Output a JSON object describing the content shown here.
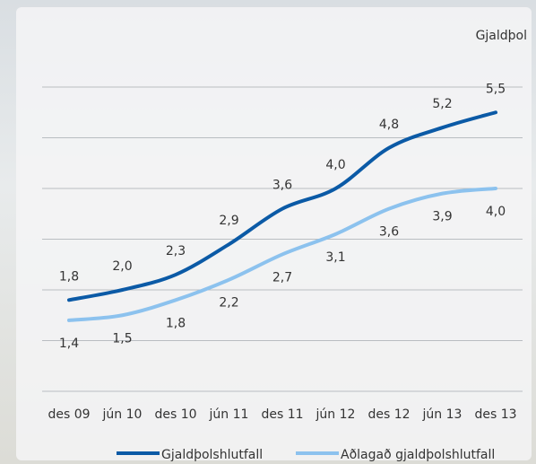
{
  "chart_data": {
    "type": "line",
    "y_label": "Gjaldþol",
    "categories": [
      "des 09",
      "jún 10",
      "des 10",
      "jún 11",
      "des 11",
      "jún 12",
      "des 12",
      "jún 13",
      "des 13"
    ],
    "series": [
      {
        "name": "Gjaldþolshlutfall",
        "color": "#0b5aa6",
        "values": [
          1.8,
          2.0,
          2.3,
          2.9,
          3.6,
          4.0,
          4.8,
          5.2,
          5.5
        ],
        "value_labels": [
          "1,8",
          "2,0",
          "2,3",
          "2,9",
          "3,6",
          "4,0",
          "4,8",
          "5,2",
          "5,5"
        ]
      },
      {
        "name": "Aðlagað gjaldþolshlutfall",
        "color": "#8cc2ee",
        "values": [
          1.4,
          1.5,
          1.8,
          2.2,
          2.7,
          3.1,
          3.6,
          3.9,
          4.0
        ],
        "value_labels": [
          "1,4",
          "1,5",
          "1,8",
          "2,2",
          "2,7",
          "3,1",
          "3,6",
          "3,9",
          "4,0"
        ]
      }
    ],
    "ylim": [
      0,
      6
    ],
    "yticks": [
      0,
      1,
      2,
      3,
      4,
      5,
      6
    ],
    "grid": true
  }
}
